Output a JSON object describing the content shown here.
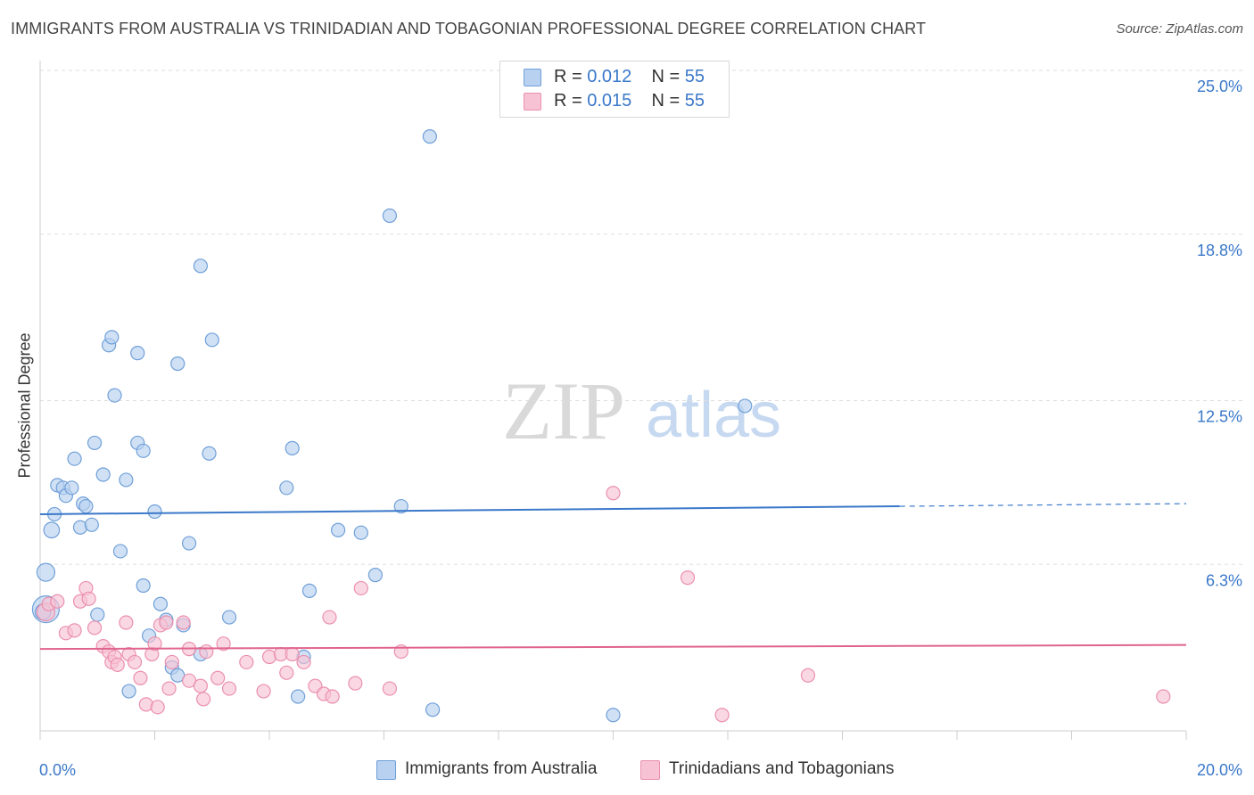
{
  "title": "IMMIGRANTS FROM AUSTRALIA VS TRINIDADIAN AND TOBAGONIAN PROFESSIONAL DEGREE CORRELATION CHART",
  "source": "Source: ZipAtlas.com",
  "watermark": {
    "zip": "ZIP",
    "atlas": "atlas"
  },
  "colors": {
    "blue": "#3a78c9",
    "blue_fill": "#b9d1f0",
    "blue_stroke": "#6f9fd8",
    "pink": "#e0648c",
    "pink_fill": "#f7c3d4",
    "pink_stroke": "#eb8fae",
    "grid": "#dddddd",
    "tick_label": "#3a78c9"
  },
  "legend_top": {
    "series1": {
      "r_label": "R = ",
      "r_value": "0.012",
      "n_label": "N = ",
      "n_value": "55"
    },
    "series2": {
      "r_label": "R = ",
      "r_value": "0.015",
      "n_label": "N = ",
      "n_value": "55"
    }
  },
  "chart_data": {
    "type": "scatter",
    "title": "IMMIGRANTS FROM AUSTRALIA VS TRINIDADIAN AND TOBAGONIAN PROFESSIONAL DEGREE CORRELATION CHART",
    "xlabel": "",
    "ylabel": "Professional Degree",
    "xlim": [
      0,
      20
    ],
    "ylim": [
      0,
      25
    ],
    "x_tick_labels": [
      "0.0%",
      "20.0%"
    ],
    "y_ticks": [
      6.3,
      12.5,
      18.8,
      25.0
    ],
    "y_tick_labels": [
      "6.3%",
      "12.5%",
      "18.8%",
      "25.0%"
    ],
    "grid": true,
    "legend_position": "bottom",
    "series": [
      {
        "name": "Immigrants from Australia",
        "color": "#3a78c9",
        "trend": {
          "x0": 0,
          "y0": 8.2,
          "x1": 15.0,
          "y1": 8.5,
          "dashed_to_x": 20,
          "dashed_to_y": 8.6
        },
        "points": [
          [
            0.1,
            4.6,
            24
          ],
          [
            0.1,
            6.0,
            16
          ],
          [
            0.2,
            7.6,
            14
          ],
          [
            0.25,
            8.2,
            12
          ],
          [
            0.3,
            9.3,
            12
          ],
          [
            0.4,
            9.2,
            12
          ],
          [
            0.45,
            8.9,
            12
          ],
          [
            0.55,
            9.2,
            12
          ],
          [
            0.6,
            10.3,
            12
          ],
          [
            0.7,
            7.7,
            12
          ],
          [
            0.75,
            8.6,
            12
          ],
          [
            0.8,
            8.5,
            12
          ],
          [
            0.9,
            7.8,
            12
          ],
          [
            0.95,
            10.9,
            12
          ],
          [
            1.0,
            4.4,
            12
          ],
          [
            1.1,
            9.7,
            12
          ],
          [
            1.2,
            14.6,
            12
          ],
          [
            1.25,
            14.9,
            12
          ],
          [
            1.3,
            12.7,
            12
          ],
          [
            1.4,
            6.8,
            12
          ],
          [
            1.5,
            9.5,
            12
          ],
          [
            1.55,
            1.5,
            12
          ],
          [
            1.7,
            14.3,
            12
          ],
          [
            1.7,
            10.9,
            12
          ],
          [
            1.8,
            10.6,
            12
          ],
          [
            1.8,
            5.5,
            12
          ],
          [
            1.9,
            3.6,
            12
          ],
          [
            2.0,
            8.3,
            12
          ],
          [
            2.1,
            4.8,
            12
          ],
          [
            2.2,
            4.2,
            12
          ],
          [
            2.3,
            2.4,
            12
          ],
          [
            2.4,
            2.1,
            12
          ],
          [
            2.4,
            13.9,
            12
          ],
          [
            2.5,
            4.0,
            12
          ],
          [
            2.6,
            7.1,
            12
          ],
          [
            2.8,
            17.6,
            12
          ],
          [
            2.8,
            2.9,
            12
          ],
          [
            2.95,
            10.5,
            12
          ],
          [
            3.0,
            14.8,
            12
          ],
          [
            3.3,
            4.3,
            12
          ],
          [
            4.3,
            9.2,
            12
          ],
          [
            4.4,
            10.7,
            12
          ],
          [
            4.5,
            1.3,
            12
          ],
          [
            4.6,
            2.8,
            12
          ],
          [
            4.7,
            5.3,
            12
          ],
          [
            5.2,
            7.6,
            12
          ],
          [
            5.6,
            7.5,
            12
          ],
          [
            5.85,
            5.9,
            12
          ],
          [
            6.1,
            19.5,
            12
          ],
          [
            6.3,
            8.5,
            12
          ],
          [
            6.8,
            22.5,
            12
          ],
          [
            6.85,
            0.8,
            12
          ],
          [
            10.0,
            0.6,
            12
          ],
          [
            12.3,
            12.3,
            12
          ],
          [
            0.05,
            4.5,
            14
          ]
        ]
      },
      {
        "name": "Trinidadians and Tobagonians",
        "color": "#e0648c",
        "trend": {
          "x0": 0,
          "y0": 3.1,
          "x1": 20,
          "y1": 3.25
        },
        "points": [
          [
            0.1,
            4.5,
            16
          ],
          [
            0.15,
            4.8,
            12
          ],
          [
            0.3,
            4.9,
            12
          ],
          [
            0.45,
            3.7,
            12
          ],
          [
            0.6,
            3.8,
            12
          ],
          [
            0.7,
            4.9,
            12
          ],
          [
            0.8,
            5.4,
            12
          ],
          [
            0.85,
            5.0,
            12
          ],
          [
            0.95,
            3.9,
            12
          ],
          [
            1.1,
            3.2,
            12
          ],
          [
            1.2,
            3.0,
            12
          ],
          [
            1.25,
            2.6,
            12
          ],
          [
            1.3,
            2.8,
            12
          ],
          [
            1.35,
            2.5,
            12
          ],
          [
            1.5,
            4.1,
            12
          ],
          [
            1.55,
            2.9,
            12
          ],
          [
            1.65,
            2.6,
            12
          ],
          [
            1.75,
            2.0,
            12
          ],
          [
            1.85,
            1.0,
            12
          ],
          [
            1.95,
            2.9,
            12
          ],
          [
            2.0,
            3.3,
            12
          ],
          [
            2.05,
            0.9,
            12
          ],
          [
            2.1,
            4.0,
            12
          ],
          [
            2.2,
            4.1,
            12
          ],
          [
            2.25,
            1.6,
            12
          ],
          [
            2.3,
            2.6,
            12
          ],
          [
            2.5,
            4.1,
            12
          ],
          [
            2.6,
            1.9,
            12
          ],
          [
            2.6,
            3.1,
            12
          ],
          [
            2.8,
            1.7,
            12
          ],
          [
            2.85,
            1.2,
            12
          ],
          [
            2.9,
            3.0,
            12
          ],
          [
            3.1,
            2.0,
            12
          ],
          [
            3.2,
            3.3,
            12
          ],
          [
            3.3,
            1.6,
            12
          ],
          [
            3.6,
            2.6,
            12
          ],
          [
            3.9,
            1.5,
            12
          ],
          [
            4.0,
            2.8,
            12
          ],
          [
            4.2,
            2.9,
            12
          ],
          [
            4.3,
            2.2,
            12
          ],
          [
            4.4,
            2.9,
            12
          ],
          [
            4.6,
            2.6,
            12
          ],
          [
            4.8,
            1.7,
            12
          ],
          [
            4.95,
            1.4,
            12
          ],
          [
            5.05,
            4.3,
            12
          ],
          [
            5.1,
            1.3,
            12
          ],
          [
            5.5,
            1.8,
            12
          ],
          [
            5.6,
            5.4,
            12
          ],
          [
            6.1,
            1.6,
            12
          ],
          [
            6.3,
            3.0,
            12
          ],
          [
            10.0,
            9.0,
            12
          ],
          [
            11.3,
            5.8,
            12
          ],
          [
            11.9,
            0.6,
            12
          ],
          [
            13.4,
            2.1,
            12
          ],
          [
            19.6,
            1.3,
            12
          ]
        ]
      }
    ]
  },
  "bottom_legend": {
    "series1": "Immigrants from Australia",
    "series2": "Trinidadians and Tobagonians"
  }
}
